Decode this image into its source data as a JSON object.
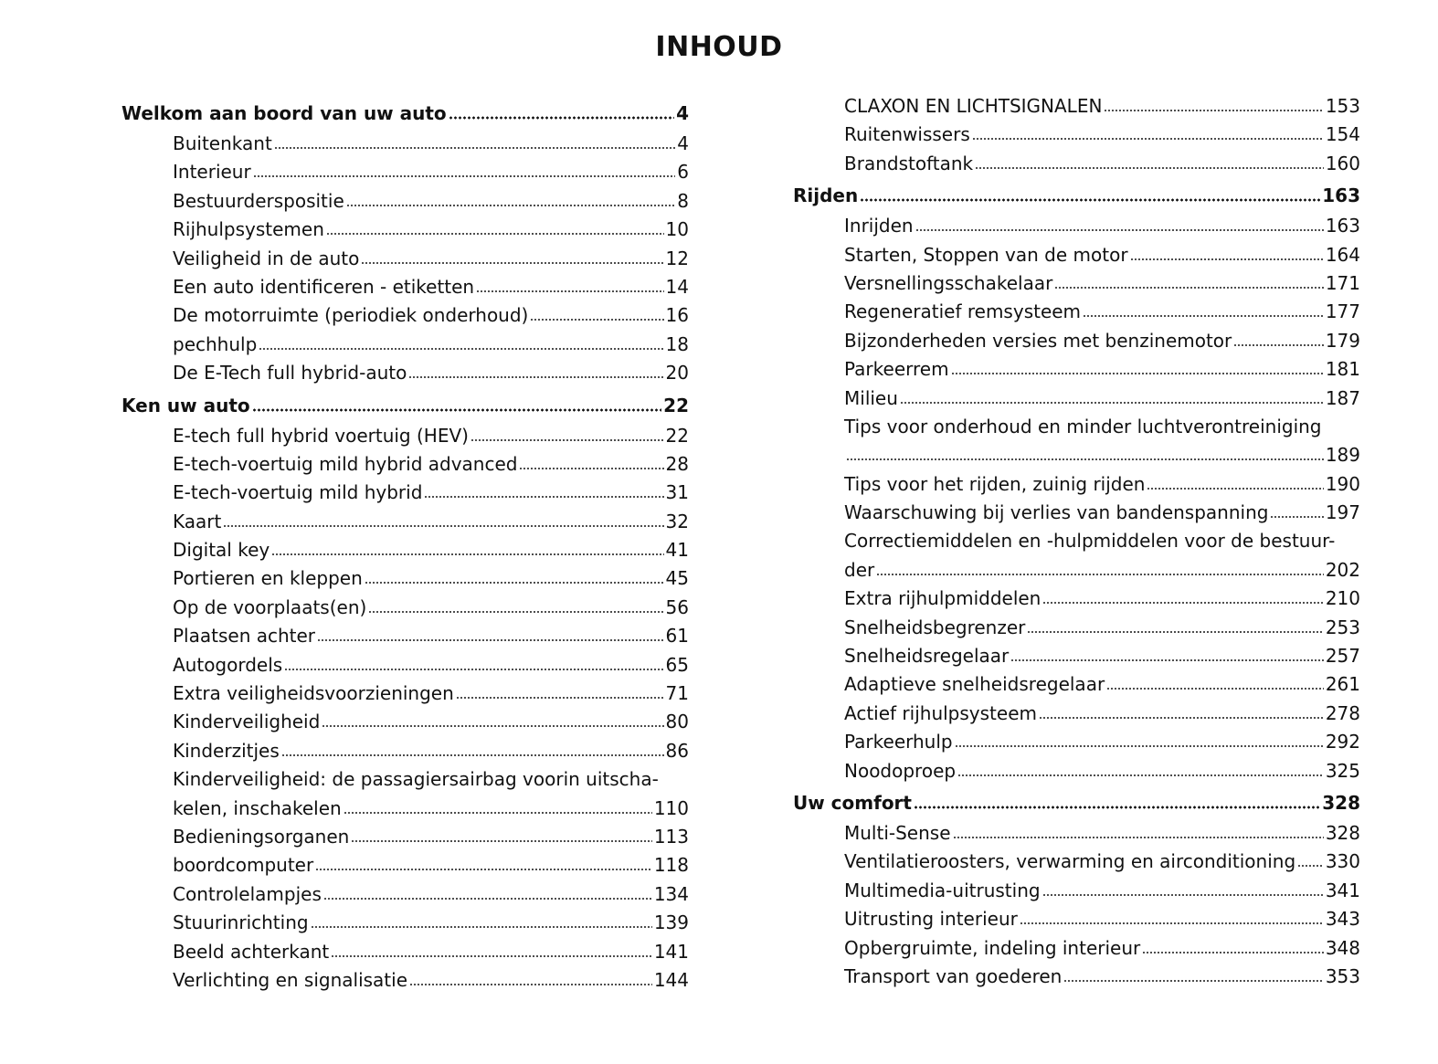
{
  "title": "INHOUD",
  "columns": [
    [
      {
        "type": "head",
        "label": "Welkom aan boord van uw auto",
        "page": "4"
      },
      {
        "type": "sub",
        "label": "Buitenkant",
        "page": "4"
      },
      {
        "type": "sub",
        "label": "Interieur",
        "page": "6"
      },
      {
        "type": "sub",
        "label": "Bestuurderspositie",
        "page": "8"
      },
      {
        "type": "sub",
        "label": "Rijhulpsystemen",
        "page": "10"
      },
      {
        "type": "sub",
        "label": "Veiligheid in de auto",
        "page": "12"
      },
      {
        "type": "sub",
        "label": "Een auto identificeren - etiketten",
        "page": "14"
      },
      {
        "type": "sub",
        "label": "De motorruimte (periodiek onderhoud)",
        "page": "16"
      },
      {
        "type": "sub",
        "label": "pechhulp",
        "page": "18"
      },
      {
        "type": "sub",
        "label": "De E-Tech full hybrid-auto",
        "page": "20"
      },
      {
        "type": "head",
        "label": "Ken uw auto",
        "page": "22"
      },
      {
        "type": "sub",
        "label": "E-tech full hybrid voertuig (HEV)",
        "page": "22"
      },
      {
        "type": "sub",
        "label": "E-tech-voertuig mild hybrid advanced",
        "page": "28"
      },
      {
        "type": "sub",
        "label": "E-tech-voertuig mild hybrid",
        "page": "31"
      },
      {
        "type": "sub",
        "label": "Kaart",
        "page": "32"
      },
      {
        "type": "sub",
        "label": "Digital key",
        "page": "41"
      },
      {
        "type": "sub",
        "label": "Portieren en kleppen",
        "page": "45"
      },
      {
        "type": "sub",
        "label": "Op de voorplaats(en)",
        "page": "56"
      },
      {
        "type": "sub",
        "label": "Plaatsen achter",
        "page": "61"
      },
      {
        "type": "sub",
        "label": "Autogordels",
        "page": "65"
      },
      {
        "type": "sub",
        "label": "Extra veiligheidsvoorzieningen",
        "page": "71"
      },
      {
        "type": "sub",
        "label": "Kinderveiligheid",
        "page": "80"
      },
      {
        "type": "sub",
        "label": "Kinderzitjes",
        "page": "86"
      },
      {
        "type": "sub",
        "label": "Kinderveiligheid: de passagiersairbag voorin uitscha-",
        "label_cont": "kelen, inschakelen",
        "page": "110"
      },
      {
        "type": "sub",
        "label": "Bedieningsorganen",
        "page": "113"
      },
      {
        "type": "sub",
        "label": "boordcomputer",
        "page": "118"
      },
      {
        "type": "sub",
        "label": "Controlelampjes",
        "page": "134"
      },
      {
        "type": "sub",
        "label": "Stuurinrichting",
        "page": "139"
      },
      {
        "type": "sub",
        "label": "Beeld achterkant",
        "page": "141"
      },
      {
        "type": "sub",
        "label": "Verlichting en signalisatie",
        "page": "144"
      }
    ],
    [
      {
        "type": "sub",
        "label": "CLAXON EN LICHTSIGNALEN",
        "page": "153"
      },
      {
        "type": "sub",
        "label": "Ruitenwissers",
        "page": "154"
      },
      {
        "type": "sub",
        "label": "Brandstoftank",
        "page": "160"
      },
      {
        "type": "head",
        "label": "Rijden",
        "page": "163"
      },
      {
        "type": "sub",
        "label": "Inrijden",
        "page": "163"
      },
      {
        "type": "sub",
        "label": "Starten, Stoppen van de motor",
        "page": "164"
      },
      {
        "type": "sub",
        "label": "Versnellingsschakelaar",
        "page": "171"
      },
      {
        "type": "sub",
        "label": "Regeneratief remsysteem",
        "page": "177"
      },
      {
        "type": "sub",
        "label": "Bijzonderheden versies met benzinemotor",
        "page": "179"
      },
      {
        "type": "sub",
        "label": "Parkeerrem",
        "page": "181"
      },
      {
        "type": "sub",
        "label": "Milieu",
        "page": "187"
      },
      {
        "type": "sub",
        "label": "Tips voor onderhoud en minder luchtverontreiniging",
        "label_cont": "",
        "page": "189"
      },
      {
        "type": "sub",
        "label": "Tips voor het rijden, zuinig rijden",
        "page": "190"
      },
      {
        "type": "sub",
        "label": "Waarschuwing bij verlies van bandenspanning",
        "page": "197"
      },
      {
        "type": "sub",
        "label": "Correctiemiddelen en -hulpmiddelen voor de bestuur-",
        "label_cont": "der",
        "page": "202"
      },
      {
        "type": "sub",
        "label": "Extra rijhulpmiddelen",
        "page": "210"
      },
      {
        "type": "sub",
        "label": "Snelheidsbegrenzer",
        "page": "253"
      },
      {
        "type": "sub",
        "label": "Snelheidsregelaar",
        "page": "257"
      },
      {
        "type": "sub",
        "label": "Adaptieve snelheidsregelaar",
        "page": "261"
      },
      {
        "type": "sub",
        "label": "Actief rijhulpsysteem",
        "page": "278"
      },
      {
        "type": "sub",
        "label": "Parkeerhulp",
        "page": "292"
      },
      {
        "type": "sub",
        "label": "Noodoproep",
        "page": "325"
      },
      {
        "type": "head",
        "label": "Uw comfort",
        "page": "328"
      },
      {
        "type": "sub",
        "label": "Multi-Sense",
        "page": "328"
      },
      {
        "type": "sub",
        "label": "Ventilatieroosters, verwarming en airconditioning",
        "page": "330"
      },
      {
        "type": "sub",
        "label": "Multimedia-uitrusting",
        "page": "341"
      },
      {
        "type": "sub",
        "label": "Uitrusting interieur",
        "page": "343"
      },
      {
        "type": "sub",
        "label": "Opbergruimte, indeling interieur",
        "page": "348"
      },
      {
        "type": "sub",
        "label": "Transport van goederen",
        "page": "353"
      }
    ]
  ]
}
